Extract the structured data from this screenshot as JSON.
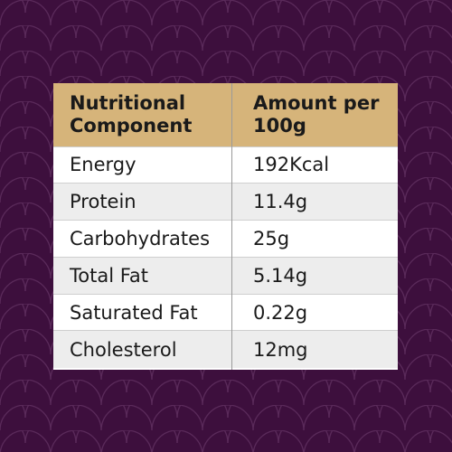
{
  "table": {
    "headers": [
      "Nutritional Component",
      "Amount per 100g"
    ],
    "rows": [
      {
        "component": "Energy",
        "amount": "192Kcal"
      },
      {
        "component": "Protein",
        "amount": "11.4g"
      },
      {
        "component": "Carbohydrates",
        "amount": "25g"
      },
      {
        "component": "Total Fat",
        "amount": "5.14g"
      },
      {
        "component": "Saturated Fat",
        "amount": "0.22g"
      },
      {
        "component": "Cholesterol",
        "amount": "12mg"
      }
    ]
  },
  "colors": {
    "background": "#3d0f3d",
    "pattern_line": "#5a2a5a",
    "header_bg": "#d6b47a",
    "row_alt": "#ededed"
  }
}
